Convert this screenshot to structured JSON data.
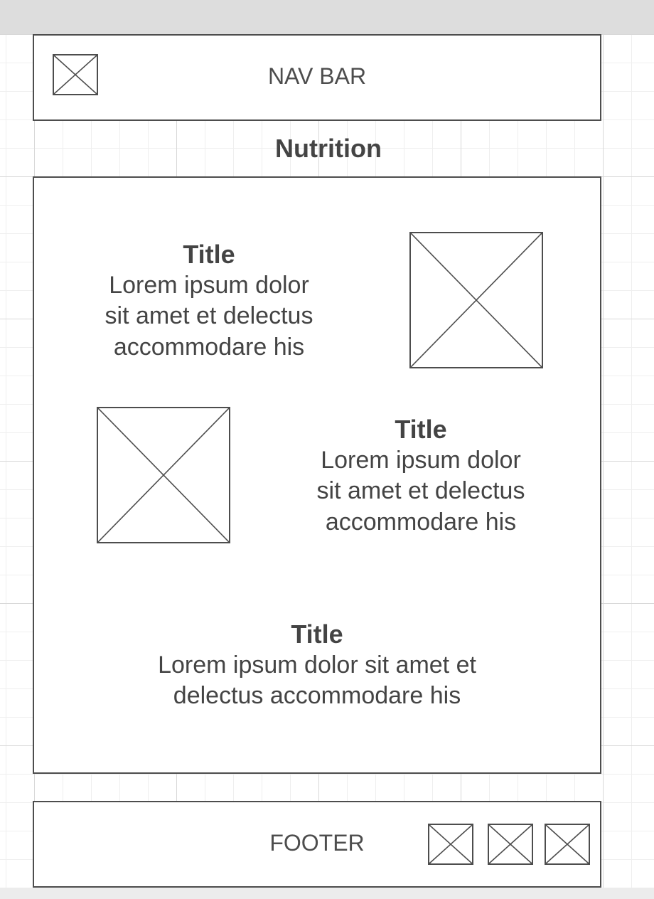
{
  "nav": {
    "label": "NAV BAR"
  },
  "page": {
    "heading": "Nutrition"
  },
  "content": {
    "blocks": [
      {
        "title": "Title",
        "body": "Lorem ipsum dolor\nsit amet et delectus\naccommodare his"
      },
      {
        "title": "Title",
        "body": "Lorem ipsum dolor\nsit amet et delectus\naccommodare his"
      },
      {
        "title": "Title",
        "body": "Lorem ipsum dolor sit amet et\ndelectus accommodare his"
      }
    ]
  },
  "footer": {
    "label": "FOOTER"
  }
}
